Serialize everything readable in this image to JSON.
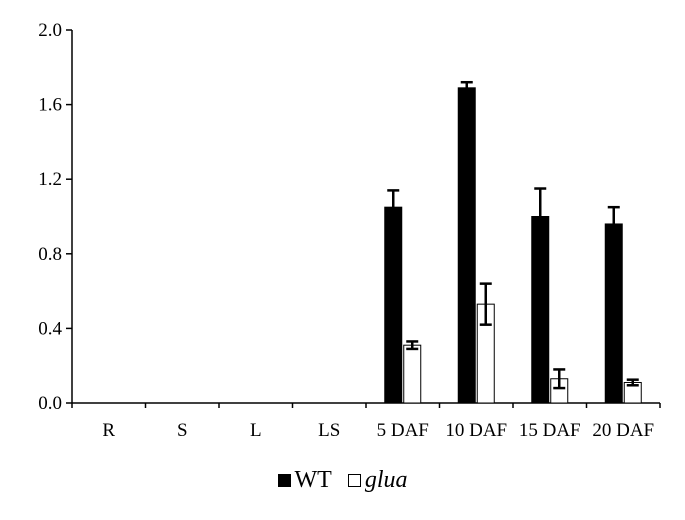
{
  "chart_data": {
    "type": "bar",
    "categories": [
      "R",
      "S",
      "L",
      "LS",
      "5 DAF",
      "10 DAF",
      "15 DAF",
      "20 DAF"
    ],
    "ylim": [
      0,
      2.0
    ],
    "yticks": [
      "0.0",
      "0.4",
      "0.8",
      "1.2",
      "1.6",
      "2.0"
    ],
    "ytick_values": [
      0,
      0.4,
      0.8,
      1.2,
      1.6,
      2.0
    ],
    "grid": false,
    "legend_position": "bottom-center",
    "series": [
      {
        "name": "WT",
        "color": "#000000",
        "values": [
          0,
          0,
          0,
          0,
          1.05,
          1.69,
          1.0,
          0.96
        ],
        "errors": [
          0,
          0,
          0,
          0,
          0.09,
          0.03,
          0.15,
          0.09
        ]
      },
      {
        "name": "glua",
        "color": "#ffffff",
        "values": [
          0,
          0,
          0,
          0,
          0.31,
          0.53,
          0.13,
          0.11
        ],
        "errors": [
          0,
          0,
          0,
          0,
          0.02,
          0.11,
          0.05,
          0.015
        ]
      }
    ]
  }
}
